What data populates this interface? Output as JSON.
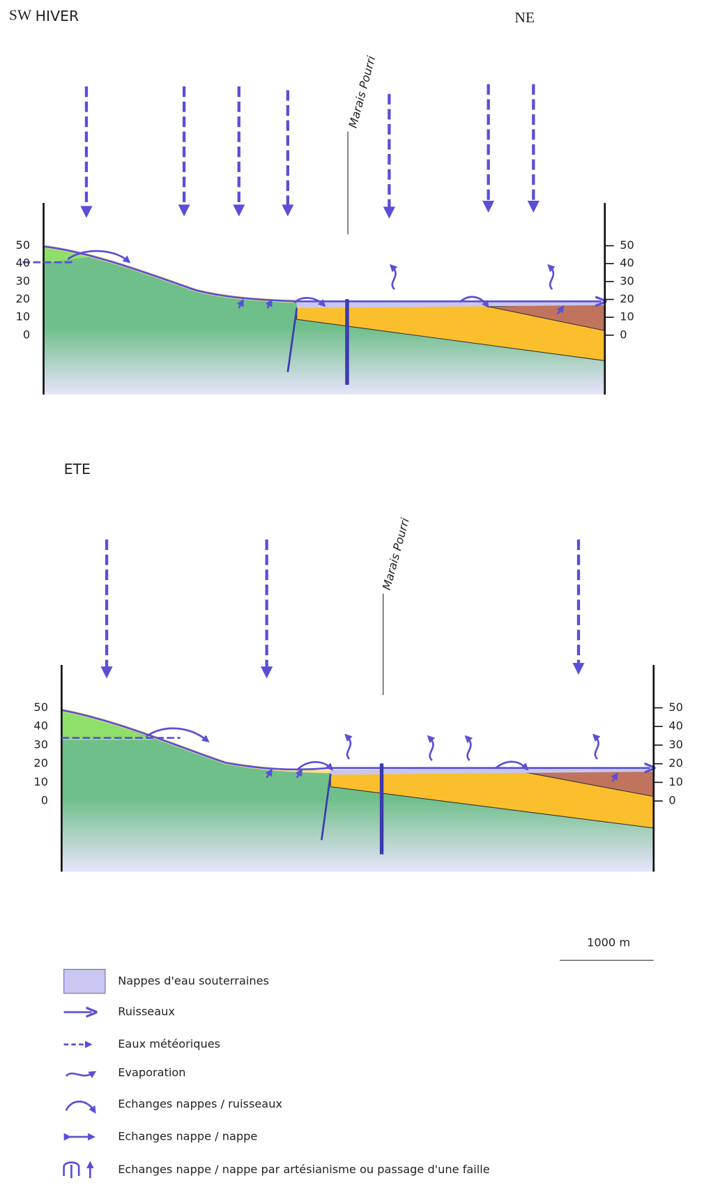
{
  "orientation": {
    "left": "SW",
    "right": "NE"
  },
  "panels": [
    {
      "season": "HIVER",
      "site_label": "Marais Pourri",
      "elevation_ticks": [
        50,
        40,
        30,
        20,
        10,
        0
      ]
    },
    {
      "season": "ETE",
      "site_label": "Marais Pourri",
      "elevation_ticks": [
        50,
        40,
        30,
        20,
        10,
        0
      ]
    }
  ],
  "scale_bar": "1000 m",
  "legend": [
    "Nappes d'eau souterraines",
    "Ruisseaux",
    "Eaux météoriques",
    "Evaporation",
    "Echanges nappes / ruisseaux",
    "Echanges nappe / nappe",
    "Echanges nappe / nappe par artésianisme ou passage d'une faille"
  ]
}
